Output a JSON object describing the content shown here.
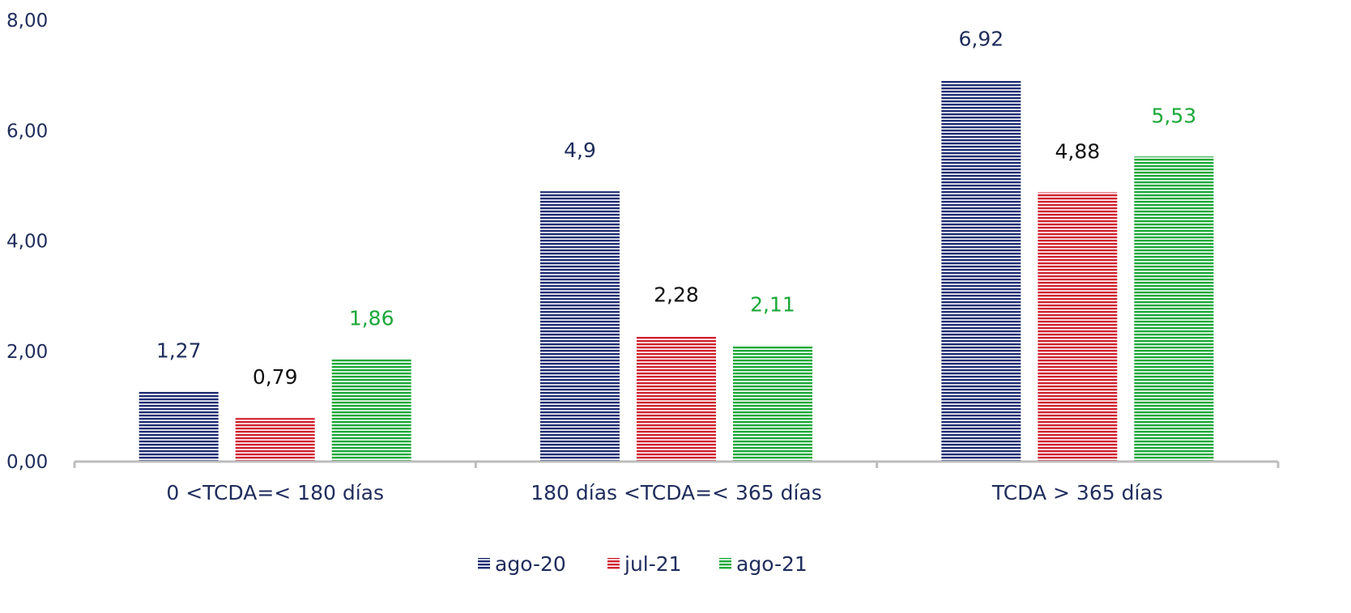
{
  "chart_data": {
    "type": "bar",
    "categories": [
      "0 <TCDA=< 180 días",
      "180 días <TCDA=< 365 días",
      "TCDA > 365 días"
    ],
    "series": [
      {
        "name": "ago-20",
        "values": [
          1.27,
          4.9,
          6.92
        ],
        "labels": [
          "1,27",
          "4,9",
          "6,92"
        ],
        "color": "#1f2d73",
        "label_color": "#1f2d5c"
      },
      {
        "name": "jul-21",
        "values": [
          0.79,
          2.28,
          4.88
        ],
        "labels": [
          "0,79",
          "2,28",
          "4,88"
        ],
        "color": "#d0212f",
        "label_color": "#111111"
      },
      {
        "name": "ago-21",
        "values": [
          1.86,
          2.11,
          5.53
        ],
        "labels": [
          "1,86",
          "2,11",
          "5,53"
        ],
        "color": "#1aa838",
        "label_color": "#1aa838"
      }
    ],
    "ylim": [
      0,
      8
    ],
    "yticks": [
      "0,00",
      "2,00",
      "4,00",
      "6,00",
      "8,00"
    ],
    "grid": false,
    "legend_position": "bottom",
    "title": "",
    "xlabel": "",
    "ylabel": ""
  }
}
